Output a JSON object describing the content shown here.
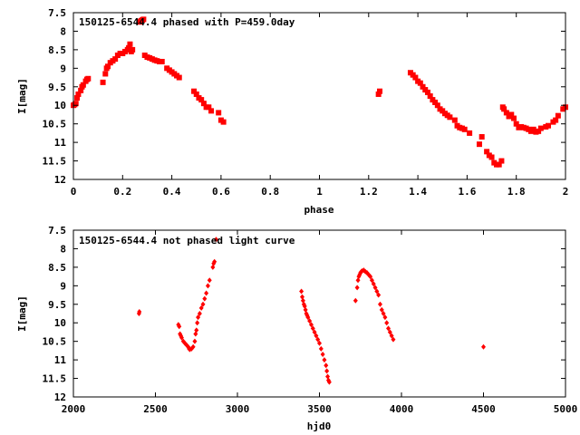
{
  "chart_data": [
    {
      "type": "scatter",
      "title": "150125-6544.4 phased with P=459.0day",
      "xlabel": "phase",
      "ylabel": "I[mag]",
      "xlim": [
        0,
        2
      ],
      "ylim": [
        12,
        7.5
      ],
      "y_inverted": true,
      "grid": false,
      "marker_color": "#ff0000",
      "x_ticks": [
        "0",
        "0.2",
        "0.4",
        "0.6",
        "0.8",
        "1",
        "1.2",
        "1.4",
        "1.6",
        "1.8",
        "2"
      ],
      "y_ticks": [
        "7.5",
        "8",
        "8.5",
        "9",
        "9.5",
        "10",
        "10.5",
        "11",
        "11.5",
        "12"
      ],
      "series": [
        {
          "x": [
            0.0,
            0.005,
            0.01,
            0.015,
            0.02,
            0.03,
            0.035,
            0.04,
            0.05,
            0.055,
            0.06,
            0.12,
            0.13,
            0.135,
            0.14,
            0.15,
            0.16,
            0.17,
            0.18,
            0.19,
            0.2,
            0.21,
            0.22,
            0.225,
            0.23,
            0.235,
            0.24,
            0.27,
            0.275,
            0.28,
            0.285,
            0.29,
            0.3,
            0.31,
            0.32,
            0.33,
            0.34,
            0.35,
            0.36,
            0.38,
            0.39,
            0.4,
            0.41,
            0.42,
            0.43,
            0.49,
            0.5,
            0.51,
            0.52,
            0.53,
            0.54,
            0.55,
            0.56,
            0.59,
            0.6,
            0.61,
            1.24,
            1.245,
            1.37,
            1.38,
            1.39,
            1.4,
            1.41,
            1.42,
            1.43,
            1.44,
            1.45,
            1.46,
            1.47,
            1.48,
            1.49,
            1.5,
            1.51,
            1.52,
            1.53,
            1.55,
            1.56,
            1.57,
            1.58,
            1.59,
            1.61,
            1.65,
            1.66,
            1.68,
            1.69,
            1.7,
            1.71,
            1.72,
            1.73,
            1.74,
            1.745,
            1.75,
            1.76,
            1.77,
            1.78,
            1.79,
            1.8,
            1.81,
            1.82,
            1.83,
            1.84,
            1.85,
            1.86,
            1.87,
            1.88,
            1.89,
            1.9,
            1.92,
            1.93,
            1.95,
            1.96,
            1.97,
            1.99,
            2.0
          ],
          "y": [
            10.0,
            9.98,
            9.95,
            9.8,
            9.7,
            9.6,
            9.5,
            9.45,
            9.35,
            9.3,
            9.28,
            9.38,
            9.15,
            9.0,
            8.95,
            8.85,
            8.8,
            8.75,
            8.65,
            8.6,
            8.6,
            8.55,
            8.5,
            8.45,
            8.35,
            8.55,
            8.5,
            7.75,
            7.72,
            7.7,
            7.68,
            8.65,
            8.7,
            8.72,
            8.75,
            8.78,
            8.8,
            8.82,
            8.82,
            9.0,
            9.05,
            9.1,
            9.15,
            9.2,
            9.25,
            9.62,
            9.7,
            9.8,
            9.85,
            9.95,
            10.05,
            10.05,
            10.15,
            10.2,
            10.4,
            10.45,
            9.7,
            9.62,
            9.12,
            9.18,
            9.25,
            9.35,
            9.4,
            9.5,
            9.58,
            9.65,
            9.75,
            9.85,
            9.92,
            10.0,
            10.1,
            10.15,
            10.22,
            10.27,
            10.32,
            10.4,
            10.55,
            10.6,
            10.62,
            10.65,
            10.75,
            11.05,
            10.85,
            11.25,
            11.35,
            11.4,
            11.55,
            11.6,
            11.6,
            11.5,
            10.05,
            10.1,
            10.2,
            10.3,
            10.25,
            10.35,
            10.5,
            10.6,
            10.58,
            10.6,
            10.62,
            10.65,
            10.7,
            10.65,
            10.72,
            10.7,
            10.62,
            10.58,
            10.55,
            10.45,
            10.4,
            10.28,
            10.1,
            10.05
          ],
          "marker": "filled-square"
        }
      ]
    },
    {
      "type": "scatter",
      "title": "150125-6544.4 not phased light curve",
      "xlabel": "hjd0",
      "ylabel": "I[mag]",
      "xlim": [
        2000,
        5000
      ],
      "ylim": [
        12,
        7.5
      ],
      "y_inverted": true,
      "grid": false,
      "marker_color": "#ff0000",
      "x_ticks": [
        "2000",
        "2500",
        "3000",
        "3500",
        "4000",
        "4500",
        "5000"
      ],
      "y_ticks": [
        "7.5",
        "8",
        "8.5",
        "9",
        "9.5",
        "10",
        "10.5",
        "11",
        "11.5",
        "12"
      ],
      "series": [
        {
          "x": [
            2400,
            2402,
            2640,
            2645,
            2650,
            2655,
            2660,
            2670,
            2680,
            2690,
            2700,
            2705,
            2710,
            2720,
            2730,
            2740,
            2745,
            2750,
            2755,
            2760,
            2770,
            2780,
            2790,
            2800,
            2810,
            2820,
            2830,
            2850,
            2855,
            2860,
            2870,
            3390,
            3395,
            3400,
            3405,
            3410,
            3415,
            3420,
            3425,
            3430,
            3440,
            3450,
            3460,
            3470,
            3480,
            3490,
            3500,
            3510,
            3520,
            3530,
            3540,
            3545,
            3550,
            3555,
            3560,
            3720,
            3730,
            3735,
            3740,
            3745,
            3750,
            3755,
            3760,
            3770,
            3780,
            3790,
            3800,
            3810,
            3820,
            3830,
            3840,
            3850,
            3860,
            3870,
            3880,
            3890,
            3900,
            3910,
            3920,
            3930,
            3940,
            3950,
            4500
          ],
          "y": [
            9.75,
            9.7,
            10.05,
            10.1,
            10.3,
            10.35,
            10.4,
            10.5,
            10.55,
            10.6,
            10.65,
            10.7,
            10.72,
            10.7,
            10.65,
            10.5,
            10.3,
            10.2,
            10.0,
            9.85,
            9.75,
            9.6,
            9.5,
            9.35,
            9.2,
            9.0,
            8.85,
            8.5,
            8.4,
            8.35,
            7.75,
            9.15,
            9.3,
            9.4,
            9.5,
            9.55,
            9.65,
            9.75,
            9.8,
            9.85,
            9.95,
            10.05,
            10.15,
            10.25,
            10.35,
            10.45,
            10.55,
            10.7,
            10.85,
            11.0,
            11.15,
            11.3,
            11.45,
            11.55,
            11.6,
            9.4,
            9.05,
            8.85,
            8.75,
            8.7,
            8.65,
            8.62,
            8.6,
            8.58,
            8.62,
            8.65,
            8.7,
            8.75,
            8.85,
            8.95,
            9.05,
            9.15,
            9.25,
            9.5,
            9.65,
            9.75,
            9.85,
            10.0,
            10.15,
            10.25,
            10.35,
            10.45,
            10.65
          ],
          "marker": "filled-diamond"
        }
      ]
    }
  ]
}
